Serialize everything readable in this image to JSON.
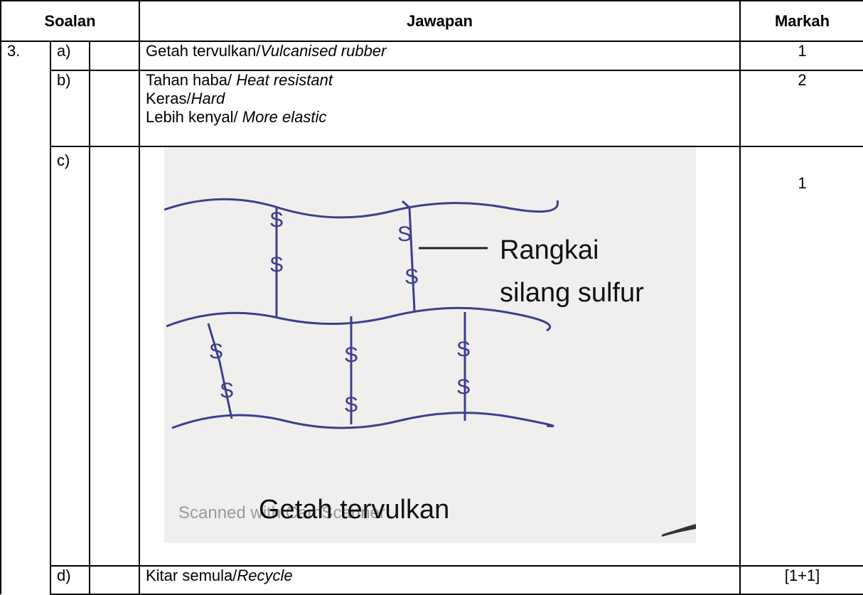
{
  "header": {
    "soalan": "Soalan",
    "jawapan": "Jawapan",
    "markah": "Markah"
  },
  "question": "3.",
  "rows": [
    {
      "part": "a)",
      "lines": [
        {
          "text": "Getah tervulkan/",
          "italic": "Vulcanised rubber"
        }
      ],
      "marks": "1"
    },
    {
      "part": "b)",
      "lines": [
        {
          "text": "Tahan haba/ ",
          "italic": "Heat resistant"
        },
        {
          "text": "Keras/",
          "italic": "Hard"
        },
        {
          "text": "Lebih kenyal/ ",
          "italic": "More elastic"
        }
      ],
      "marks": "2"
    },
    {
      "part": "c)",
      "diagram": {
        "atom": "S",
        "label": [
          "Rangkai",
          "silang sulfur"
        ],
        "caption": "Getah tervulkan",
        "watermark": "Scanned with CamScanner"
      },
      "marks": "1"
    },
    {
      "part": "d)",
      "lines": [
        {
          "text": "Kitar semula/",
          "italic": "Recycle"
        }
      ],
      "marks": "[1+1]"
    }
  ]
}
